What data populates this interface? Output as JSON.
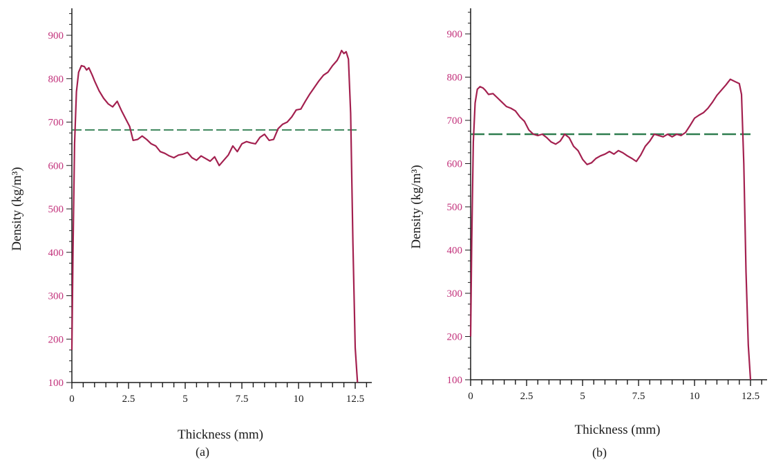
{
  "style": {
    "axis_color": "#1a1a1a",
    "y_tick_color": "#c2307a",
    "x_tick_color": "#1a1a1a",
    "profile_color": "#a3204f",
    "mean_color": "#2e7d4f"
  },
  "chart_data": [
    {
      "type": "line",
      "panel_label": "(a)",
      "xlabel": "Thickness (mm)",
      "ylabel": "Density (kg/m³)",
      "xlim": [
        0,
        12.5
      ],
      "ylim": [
        100,
        900
      ],
      "x_ticks": [
        "0",
        "2.5",
        "5",
        "7.5",
        "10",
        "12.5"
      ],
      "y_ticks": [
        "100",
        "200",
        "300",
        "400",
        "500",
        "600",
        "700",
        "800",
        "900"
      ],
      "grid": false,
      "mean_density": 682,
      "series": [
        {
          "x": [
            0,
            0.05,
            0.12,
            0.2,
            0.3,
            0.42,
            0.55,
            0.65,
            0.75,
            0.9,
            1.0,
            1.2,
            1.4,
            1.6,
            1.8,
            2.0,
            2.2,
            2.4,
            2.55,
            2.7,
            2.9,
            3.1,
            3.3,
            3.5,
            3.7,
            3.9,
            4.1,
            4.3,
            4.5,
            4.7,
            4.9,
            5.1,
            5.3,
            5.5,
            5.7,
            5.9,
            6.1,
            6.3,
            6.5,
            6.7,
            6.9,
            7.1,
            7.3,
            7.5,
            7.7,
            7.9,
            8.1,
            8.3,
            8.5,
            8.7,
            8.9,
            9.1,
            9.3,
            9.5,
            9.7,
            9.9,
            10.1,
            10.3,
            10.5,
            10.7,
            10.9,
            11.1,
            11.3,
            11.5,
            11.7,
            11.8,
            11.9,
            12.0,
            12.1,
            12.2,
            12.3,
            12.4,
            12.5,
            12.6
          ],
          "y": [
            175,
            400,
            650,
            770,
            815,
            830,
            828,
            820,
            825,
            808,
            795,
            772,
            755,
            742,
            735,
            748,
            725,
            705,
            690,
            658,
            660,
            668,
            660,
            650,
            645,
            632,
            628,
            622,
            618,
            624,
            626,
            630,
            618,
            612,
            622,
            616,
            610,
            620,
            600,
            612,
            624,
            645,
            632,
            650,
            655,
            652,
            650,
            665,
            672,
            658,
            660,
            685,
            695,
            700,
            712,
            728,
            730,
            748,
            765,
            780,
            795,
            808,
            815,
            830,
            842,
            852,
            865,
            858,
            862,
            845,
            720,
            420,
            180,
            100
          ]
        }
      ]
    },
    {
      "type": "line",
      "panel_label": "(b)",
      "xlabel": "Thickness (mm)",
      "ylabel": "Density (kg/m³)",
      "xlim": [
        0,
        12.5
      ],
      "ylim": [
        100,
        900
      ],
      "x_ticks": [
        "0",
        "2.5",
        "5",
        "7.5",
        "10",
        "12.5"
      ],
      "y_ticks": [
        "100",
        "200",
        "300",
        "400",
        "500",
        "600",
        "700",
        "800",
        "900"
      ],
      "grid": false,
      "mean_density": 668,
      "series": [
        {
          "x": [
            0,
            0.05,
            0.12,
            0.2,
            0.3,
            0.42,
            0.55,
            0.65,
            0.8,
            1.0,
            1.2,
            1.4,
            1.6,
            1.8,
            2.0,
            2.2,
            2.4,
            2.6,
            2.8,
            3.0,
            3.2,
            3.4,
            3.6,
            3.8,
            4.0,
            4.2,
            4.4,
            4.6,
            4.8,
            5.0,
            5.2,
            5.4,
            5.6,
            5.8,
            6.0,
            6.2,
            6.4,
            6.6,
            6.8,
            7.0,
            7.2,
            7.4,
            7.6,
            7.8,
            8.0,
            8.2,
            8.4,
            8.6,
            8.8,
            9.0,
            9.2,
            9.4,
            9.6,
            9.8,
            10.0,
            10.2,
            10.4,
            10.6,
            10.8,
            11.0,
            11.2,
            11.4,
            11.6,
            11.8,
            12.0,
            12.1,
            12.2,
            12.3,
            12.4,
            12.5
          ],
          "y": [
            200,
            420,
            650,
            740,
            772,
            778,
            775,
            770,
            760,
            762,
            752,
            742,
            732,
            728,
            722,
            708,
            698,
            678,
            668,
            665,
            668,
            660,
            650,
            645,
            652,
            668,
            660,
            640,
            630,
            610,
            598,
            602,
            612,
            618,
            622,
            628,
            622,
            630,
            625,
            618,
            612,
            605,
            620,
            640,
            652,
            668,
            665,
            662,
            668,
            662,
            668,
            665,
            672,
            688,
            705,
            712,
            718,
            728,
            742,
            758,
            770,
            782,
            795,
            790,
            785,
            760,
            600,
            350,
            180,
            100
          ]
        }
      ]
    }
  ]
}
